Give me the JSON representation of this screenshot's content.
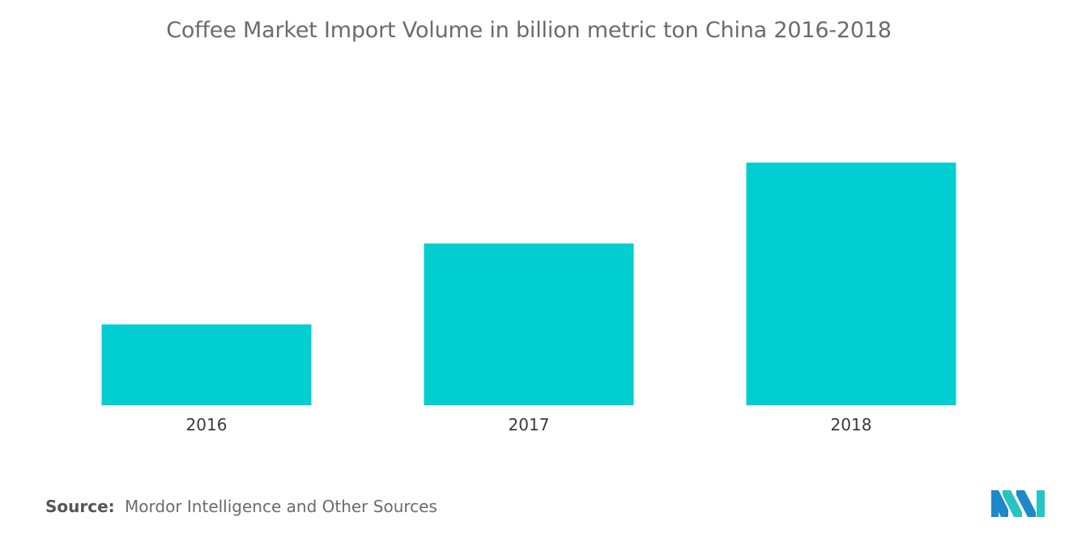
{
  "chart_data": {
    "type": "bar",
    "title": "Coffee Market Import Volume in billion metric ton China 2016-2018",
    "categories": [
      "2016",
      "2017",
      "2018"
    ],
    "values": [
      1,
      2,
      3
    ],
    "ylim": [
      0,
      3.6
    ],
    "xlabel": "",
    "ylabel": "",
    "grid": false,
    "legend": "none",
    "bar_color": "#00ced1"
  },
  "footer": {
    "source_label": "Source:",
    "source_text": "Mordor Intelligence and Other Sources",
    "logo_icon": "mordor-intelligence-logo",
    "logo_colors": [
      "#1e88c8",
      "#27c4c4"
    ]
  }
}
